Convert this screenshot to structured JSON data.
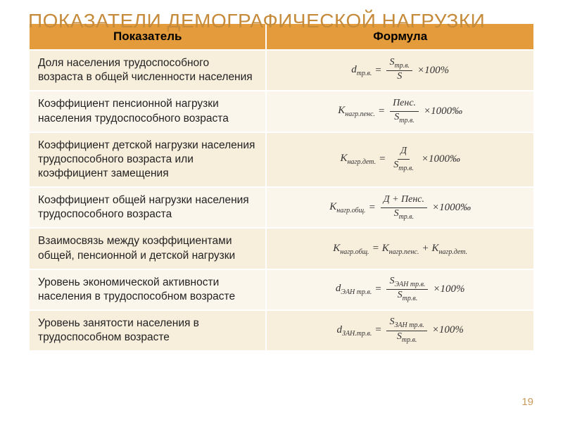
{
  "title": "ПОКАЗАТЕЛИ ДЕМОГРАФИЧЕСКОЙ НАГРУЗКИ",
  "headers": {
    "col1": "Показатель",
    "col2": "Формула"
  },
  "rows": [
    {
      "label": "Доля населения трудоспособного возраста в общей численности населения",
      "formula": {
        "lhs_sym": "d",
        "lhs_sub": "тр.в.",
        "num": "S",
        "num_sub": "тр.в.",
        "den": "S",
        "den_sub": "",
        "suffix": "×100%"
      }
    },
    {
      "label": "Коэффициент пенсионной нагрузки населения трудоспособного возраста",
      "formula": {
        "lhs_sym": "К",
        "lhs_sub": "нагр.пенс.",
        "num": "Пенс.",
        "num_sub": "",
        "den": "S",
        "den_sub": "тр.в.",
        "suffix": "×1000‰"
      }
    },
    {
      "label": "Коэффициент детской нагрузки населения трудоспособного возраста или коэффициент замещения",
      "formula": {
        "lhs_sym": "К",
        "lhs_sub": "нагр.дет.",
        "num": "Д",
        "num_sub": "",
        "den": "S",
        "den_sub": "тр.в.",
        "suffix": "×1000‰"
      }
    },
    {
      "label": "Коэффициент общей нагрузки населения трудоспособного возраста",
      "formula": {
        "lhs_sym": "К",
        "lhs_sub": "нагр.общ.",
        "num": "Д + Пенс.",
        "num_sub": "",
        "den": "S",
        "den_sub": "тр.в.",
        "suffix": "×1000‰"
      }
    },
    {
      "label": "Взаимосвязь между коэффициентами общей, пенсионной и детской нагрузки",
      "formula_sum": {
        "lhs_sym": "К",
        "lhs_sub": "нагр.общ.",
        "t1_sym": "К",
        "t1_sub": "нагр.пенс.",
        "t2_sym": "К",
        "t2_sub": "нагр.дет."
      }
    },
    {
      "label": "Уровень экономической активности населения в трудоспособном возрасте",
      "formula": {
        "lhs_sym": "d",
        "lhs_sub": "ЭАН тр.в.",
        "num": "S",
        "num_sub": "ЭАН тр.в.",
        "den": "S",
        "den_sub": "тр.в.",
        "suffix": "×100%"
      }
    },
    {
      "label": "Уровень занятости населения в трудоспособном возрасте",
      "formula": {
        "lhs_sym": "d",
        "lhs_sub": "ЗАН.тр.в.",
        "num": "S",
        "num_sub": "ЗАН тр.в.",
        "den": "S",
        "den_sub": "тр.в.",
        "suffix": "×100%"
      }
    }
  ],
  "page_number": "19",
  "colors": {
    "title": "#c68b3a",
    "header_bg": "#e49b3b",
    "row_odd_bg": "#f8eedc",
    "row_even_bg": "#fbf6eb",
    "page_num": "#c99a5b"
  }
}
